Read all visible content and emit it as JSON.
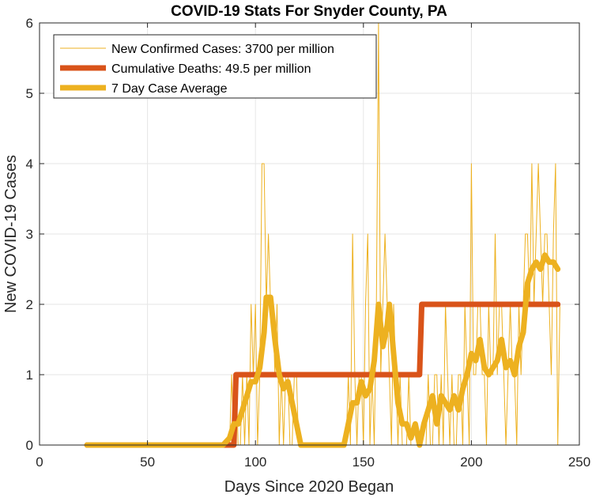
{
  "chart_data": {
    "type": "line",
    "title": "COVID-19 Stats For Snyder County, PA",
    "xlabel": "Days Since 2020 Began",
    "ylabel": "New COVID-19 Cases",
    "xlim": [
      0,
      250
    ],
    "ylim": [
      0,
      6
    ],
    "xticks": [
      0,
      50,
      100,
      150,
      200,
      250
    ],
    "yticks": [
      0,
      1,
      2,
      3,
      4,
      5,
      6
    ],
    "grid": true,
    "legend_position": "top-left",
    "series": [
      {
        "name": "New Confirmed Cases: 3700 per million",
        "color": "#EDB120",
        "style": "thin",
        "points": [
          [
            22,
            0
          ],
          [
            88,
            0
          ],
          [
            89,
            1
          ],
          [
            90,
            0
          ],
          [
            91,
            1
          ],
          [
            92,
            0
          ],
          [
            93,
            0
          ],
          [
            94,
            1
          ],
          [
            95,
            0
          ],
          [
            96,
            1
          ],
          [
            97,
            0
          ],
          [
            98,
            2
          ],
          [
            99,
            1
          ],
          [
            100,
            2
          ],
          [
            101,
            0
          ],
          [
            102,
            1
          ],
          [
            103,
            4
          ],
          [
            104,
            4
          ],
          [
            105,
            2
          ],
          [
            106,
            3
          ],
          [
            107,
            2
          ],
          [
            108,
            2
          ],
          [
            109,
            1
          ],
          [
            110,
            2
          ],
          [
            111,
            0
          ],
          [
            112,
            1
          ],
          [
            113,
            0
          ],
          [
            114,
            1
          ],
          [
            115,
            1
          ],
          [
            116,
            0
          ],
          [
            117,
            0
          ],
          [
            118,
            1
          ],
          [
            119,
            1
          ],
          [
            120,
            0
          ],
          [
            121,
            0
          ],
          [
            122,
            0
          ],
          [
            124,
            0
          ],
          [
            126,
            0
          ],
          [
            128,
            0
          ],
          [
            130,
            0
          ],
          [
            132,
            0
          ],
          [
            134,
            0
          ],
          [
            136,
            0
          ],
          [
            138,
            0
          ],
          [
            140,
            0
          ],
          [
            142,
            0
          ],
          [
            143,
            1
          ],
          [
            144,
            0
          ],
          [
            145,
            3
          ],
          [
            146,
            1
          ],
          [
            147,
            0
          ],
          [
            148,
            1
          ],
          [
            149,
            1
          ],
          [
            150,
            0
          ],
          [
            151,
            2
          ],
          [
            152,
            3
          ],
          [
            153,
            0
          ],
          [
            154,
            1
          ],
          [
            155,
            0
          ],
          [
            156,
            2
          ],
          [
            157,
            6
          ],
          [
            158,
            1
          ],
          [
            159,
            2
          ],
          [
            160,
            3
          ],
          [
            161,
            2
          ],
          [
            162,
            1
          ],
          [
            163,
            0
          ],
          [
            164,
            2
          ],
          [
            165,
            1
          ],
          [
            166,
            0
          ],
          [
            167,
            1
          ],
          [
            168,
            0
          ],
          [
            169,
            0
          ],
          [
            170,
            0
          ],
          [
            171,
            1
          ],
          [
            172,
            0
          ],
          [
            173,
            0
          ],
          [
            174,
            0
          ],
          [
            175,
            0
          ],
          [
            176,
            0
          ],
          [
            177,
            0
          ],
          [
            178,
            0
          ],
          [
            179,
            0
          ],
          [
            180,
            1
          ],
          [
            181,
            0
          ],
          [
            182,
            0
          ],
          [
            183,
            1
          ],
          [
            184,
            1
          ],
          [
            185,
            0
          ],
          [
            186,
            1
          ],
          [
            187,
            0
          ],
          [
            188,
            2
          ],
          [
            189,
            1
          ],
          [
            190,
            0
          ],
          [
            191,
            1
          ],
          [
            192,
            0
          ],
          [
            193,
            0
          ],
          [
            194,
            1
          ],
          [
            195,
            1
          ],
          [
            196,
            0
          ],
          [
            197,
            2
          ],
          [
            198,
            1
          ],
          [
            199,
            0
          ],
          [
            200,
            4
          ],
          [
            201,
            1
          ],
          [
            202,
            1
          ],
          [
            203,
            2
          ],
          [
            204,
            2
          ],
          [
            205,
            1
          ],
          [
            206,
            1
          ],
          [
            207,
            0
          ],
          [
            208,
            2
          ],
          [
            209,
            1
          ],
          [
            210,
            1
          ],
          [
            211,
            3
          ],
          [
            212,
            1
          ],
          [
            213,
            2
          ],
          [
            214,
            2
          ],
          [
            215,
            1
          ],
          [
            216,
            0
          ],
          [
            217,
            1
          ],
          [
            218,
            2
          ],
          [
            219,
            1
          ],
          [
            220,
            1
          ],
          [
            221,
            0
          ],
          [
            222,
            2
          ],
          [
            223,
            1
          ],
          [
            224,
            2
          ],
          [
            225,
            3
          ],
          [
            226,
            3
          ],
          [
            227,
            2
          ],
          [
            228,
            4
          ],
          [
            229,
            2
          ],
          [
            230,
            3
          ],
          [
            231,
            4
          ],
          [
            232,
            3
          ],
          [
            233,
            2
          ],
          [
            234,
            3
          ],
          [
            235,
            3
          ],
          [
            236,
            2
          ],
          [
            237,
            1
          ],
          [
            238,
            3
          ],
          [
            239,
            4
          ],
          [
            240,
            0
          ],
          [
            241,
            2
          ]
        ]
      },
      {
        "name": "Cumulative Deaths: 49.5 per million",
        "color": "#D95319",
        "style": "thick",
        "points": [
          [
            22,
            0
          ],
          [
            89,
            0
          ],
          [
            90,
            0
          ],
          [
            91,
            1
          ],
          [
            176,
            1
          ],
          [
            177,
            2
          ],
          [
            240,
            2
          ]
        ]
      },
      {
        "name": "7 Day Case Average",
        "color": "#EDB120",
        "style": "thick",
        "points": [
          [
            22,
            0
          ],
          [
            85,
            0
          ],
          [
            88,
            0.1
          ],
          [
            90,
            0.3
          ],
          [
            92,
            0.3
          ],
          [
            94,
            0.5
          ],
          [
            96,
            0.7
          ],
          [
            98,
            0.9
          ],
          [
            100,
            0.9
          ],
          [
            102,
            1.1
          ],
          [
            104,
            1.6
          ],
          [
            105,
            2.1
          ],
          [
            107,
            2.1
          ],
          [
            109,
            1.5
          ],
          [
            111,
            1.0
          ],
          [
            113,
            0.8
          ],
          [
            115,
            0.9
          ],
          [
            117,
            0.6
          ],
          [
            119,
            0.3
          ],
          [
            121,
            0.0
          ],
          [
            123,
            0.0
          ],
          [
            126,
            0.0
          ],
          [
            129,
            0.0
          ],
          [
            131,
            0.0
          ],
          [
            134,
            0.0
          ],
          [
            137,
            0.0
          ],
          [
            141,
            0.0
          ],
          [
            143,
            0.3
          ],
          [
            145,
            0.6
          ],
          [
            147,
            0.6
          ],
          [
            149,
            0.9
          ],
          [
            151,
            0.7
          ],
          [
            153,
            0.8
          ],
          [
            155,
            1.2
          ],
          [
            157,
            2.0
          ],
          [
            159,
            1.4
          ],
          [
            161,
            1.7
          ],
          [
            162,
            2.0
          ],
          [
            164,
            1.3
          ],
          [
            166,
            0.6
          ],
          [
            168,
            0.3
          ],
          [
            170,
            0.3
          ],
          [
            172,
            0.1
          ],
          [
            174,
            0.3
          ],
          [
            176,
            0.0
          ],
          [
            178,
            0.3
          ],
          [
            180,
            0.5
          ],
          [
            182,
            0.7
          ],
          [
            184,
            0.3
          ],
          [
            186,
            0.7
          ],
          [
            188,
            0.6
          ],
          [
            190,
            0.5
          ],
          [
            192,
            0.7
          ],
          [
            194,
            0.5
          ],
          [
            196,
            0.8
          ],
          [
            198,
            1.0
          ],
          [
            200,
            1.3
          ],
          [
            202,
            1.2
          ],
          [
            204,
            1.5
          ],
          [
            206,
            1.1
          ],
          [
            208,
            1.0
          ],
          [
            210,
            1.1
          ],
          [
            212,
            1.2
          ],
          [
            214,
            1.5
          ],
          [
            216,
            1.1
          ],
          [
            218,
            1.2
          ],
          [
            220,
            1.0
          ],
          [
            222,
            1.4
          ],
          [
            224,
            1.6
          ],
          [
            226,
            2.3
          ],
          [
            228,
            2.5
          ],
          [
            230,
            2.6
          ],
          [
            232,
            2.5
          ],
          [
            234,
            2.7
          ],
          [
            236,
            2.6
          ],
          [
            238,
            2.6
          ],
          [
            240,
            2.5
          ]
        ]
      }
    ]
  }
}
